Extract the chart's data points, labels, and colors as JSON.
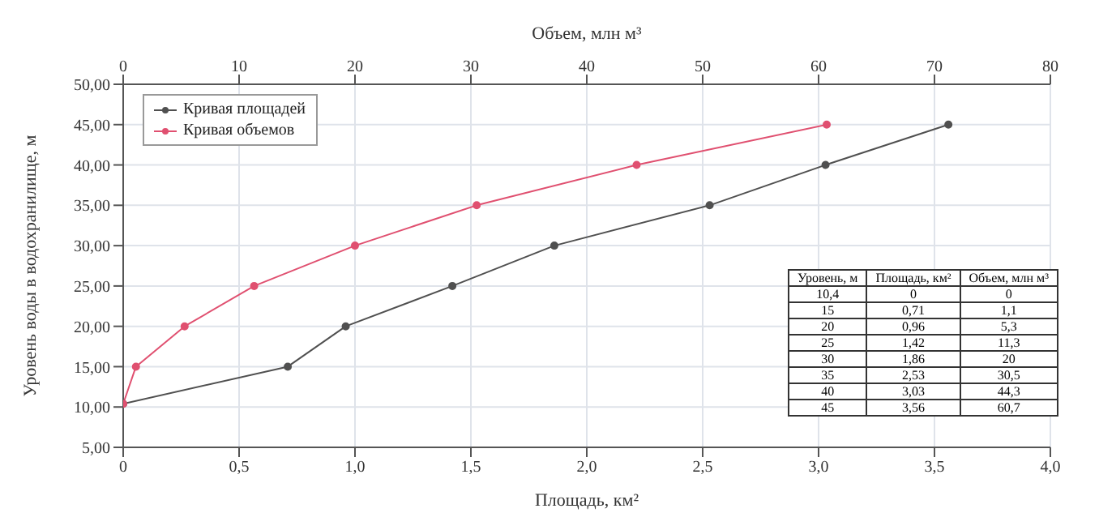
{
  "chart_data": {
    "type": "line",
    "xlabel": "Площадь, км²",
    "x2label": "Объем, млн м³",
    "ylabel": "Уровень воды в водохранилище, м",
    "xlim": [
      0,
      4
    ],
    "xticks": [
      0,
      {
        "value": 0.5,
        "label": "0,5"
      },
      {
        "value": 1,
        "label": "1,0"
      },
      {
        "value": 1.5,
        "label": "1,5"
      },
      {
        "value": 2,
        "label": "2,0"
      },
      {
        "value": 2.5,
        "label": "2,5"
      },
      {
        "value": 3,
        "label": "3,0"
      },
      {
        "value": 3.5,
        "label": "3,5"
      },
      {
        "value": 4,
        "label": "4,0"
      }
    ],
    "x2lim": [
      0,
      80
    ],
    "x2ticks": [
      0,
      10,
      20,
      30,
      40,
      50,
      60,
      70,
      80
    ],
    "ylim": [
      5,
      50
    ],
    "yticks": [
      {
        "value": 5,
        "label": "5,00"
      },
      {
        "value": 10,
        "label": "10,00"
      },
      {
        "value": 15,
        "label": "15,00"
      },
      {
        "value": 20,
        "label": "20,00"
      },
      {
        "value": 25,
        "label": "25,00"
      },
      {
        "value": 30,
        "label": "30,00"
      },
      {
        "value": 35,
        "label": "35,00"
      },
      {
        "value": 40,
        "label": "40,00"
      },
      {
        "value": 45,
        "label": "45,00"
      },
      {
        "value": 50,
        "label": "50,00"
      }
    ],
    "series": [
      {
        "name": "Кривая площадей",
        "color": "#505050",
        "x": [
          0,
          0.71,
          0.96,
          1.42,
          1.86,
          2.53,
          3.03,
          3.56
        ],
        "values": [
          10.4,
          15,
          20,
          25,
          30,
          35,
          40,
          45
        ]
      },
      {
        "name": "Кривая объемов",
        "color": "#e05070",
        "axis": "x2",
        "x": [
          0,
          1.1,
          5.3,
          11.3,
          20,
          30.5,
          44.3,
          60.7
        ],
        "values": [
          10.4,
          15,
          20,
          25,
          30,
          35,
          40,
          45
        ]
      }
    ],
    "annotations": [
      "Уровень, м",
      "Площадь, км²",
      "Объем, млн м³",
      "10,4",
      "0",
      "0",
      "15",
      "0,71",
      "1,1",
      "20",
      "0,96",
      "5,3",
      "25",
      "1,42",
      "11,3",
      "30",
      "1,86",
      "20",
      "35",
      "2,53",
      "30,5",
      "40",
      "3,03",
      "44,3",
      "45",
      "3,56",
      "60,7"
    ],
    "grid": true,
    "legend": "top left",
    "marker": "circle",
    "line_style": "solid"
  }
}
